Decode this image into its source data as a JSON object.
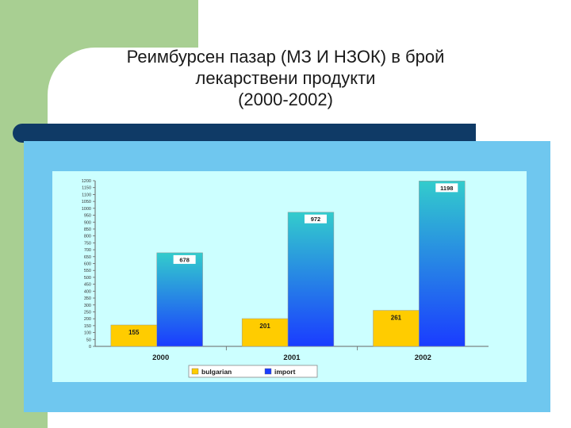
{
  "slide": {
    "title_lines": [
      "Реимбурсен пазар (МЗ И НЗОК) в брой",
      "лекарствени продукти",
      "(2000-2002)"
    ]
  },
  "colors": {
    "accent_green": "#a8cf92",
    "title_bar": "#0f3a66",
    "chart_frame": "#6fc7ef",
    "plot_bg": "#ccffff",
    "bulgarian": "#ffcc00",
    "import_top": "#33cccc",
    "import_bottom": "#1a3cff"
  },
  "chart_data": {
    "type": "bar",
    "categories": [
      "2000",
      "2001",
      "2002"
    ],
    "series": [
      {
        "name": "bulgarian",
        "values": [
          155,
          201,
          261
        ],
        "labels": [
          "155",
          "201",
          "261"
        ]
      },
      {
        "name": "import",
        "values": [
          678,
          972,
          1198
        ],
        "labels": [
          "678",
          "972",
          "1198"
        ]
      }
    ],
    "ylim": [
      0,
      1200
    ],
    "y_ticks": [
      "0",
      "50",
      "100",
      "150",
      "200",
      "250",
      "300",
      "350",
      "400",
      "450",
      "500",
      "550",
      "600",
      "650",
      "700",
      "750",
      "800",
      "850",
      "900",
      "950",
      "1000",
      "1050",
      "1100",
      "1150",
      "1200"
    ],
    "legend": {
      "placement": "bottom",
      "entries": [
        "bulgarian",
        "import"
      ]
    },
    "title": "",
    "xlabel": "",
    "ylabel": ""
  }
}
